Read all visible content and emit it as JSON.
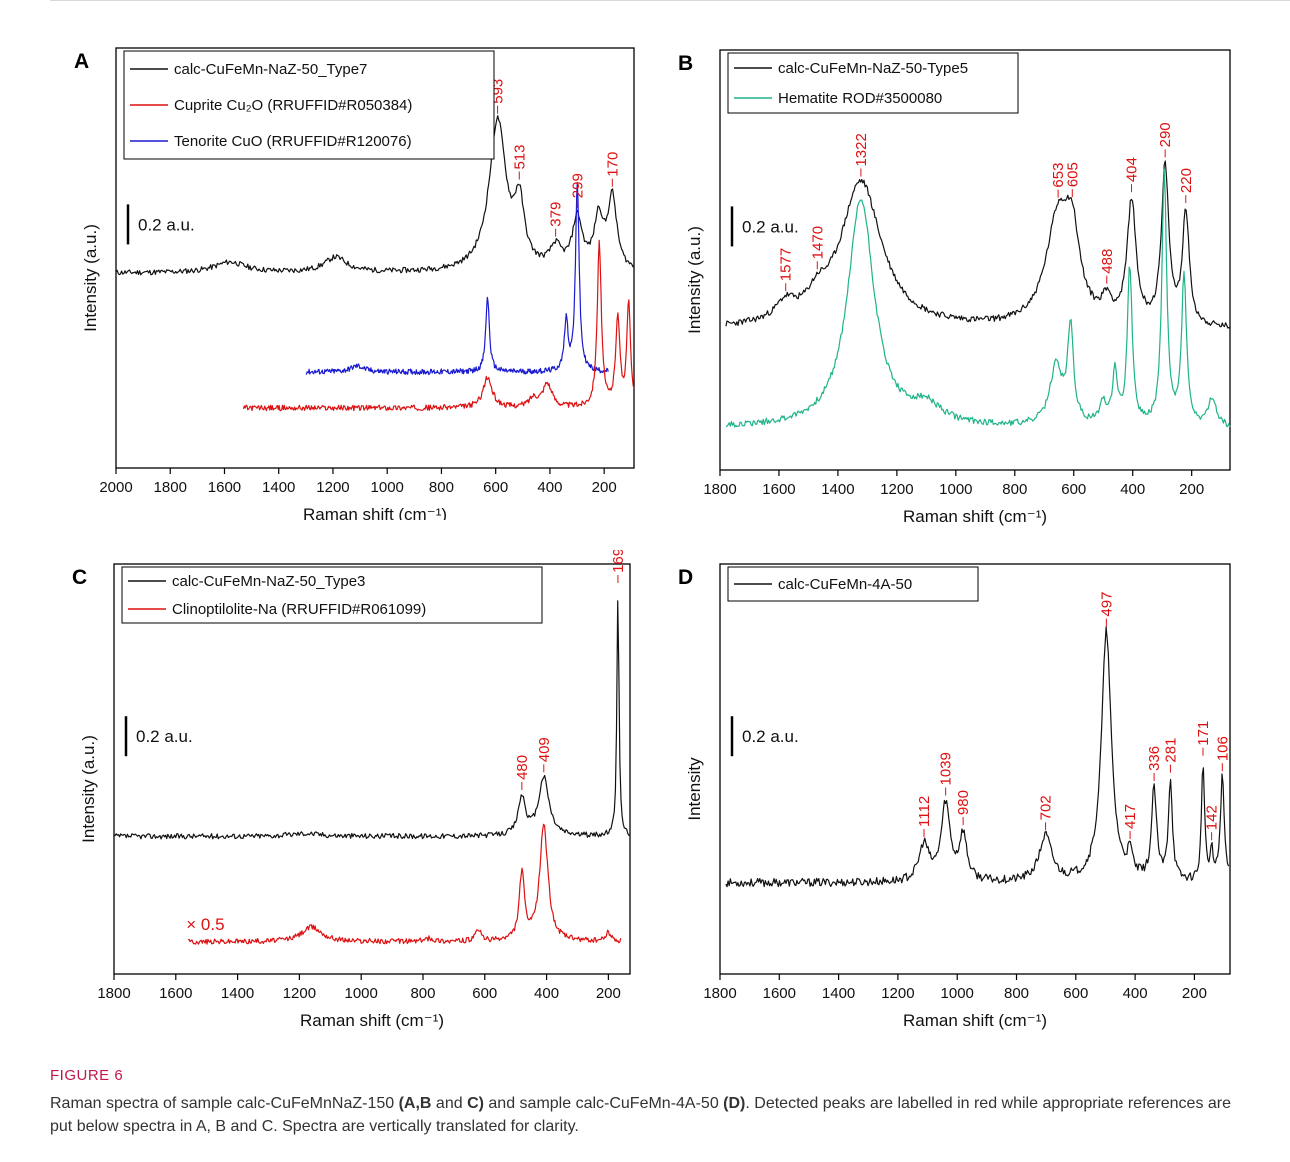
{
  "figure": {
    "label": "FIGURE 6",
    "caption_parts": [
      "Raman spectra of sample calc-CuFeMnNaZ-150 ",
      "(A,B",
      " and ",
      "C)",
      " and sample calc-CuFeMn-4A-50 ",
      "(D)",
      ". Detected peaks are labelled in red while appropriate references are put below spectra in A, B and C. Spectra are vertically translated for clarity."
    ]
  },
  "chart_data": [
    {
      "panel": "A",
      "type": "line",
      "xlabel": "Raman shift (cm⁻¹)",
      "ylabel": "Intensity (a.u.)",
      "xlim": [
        2000,
        90
      ],
      "xticks": [
        2000,
        1800,
        1600,
        1400,
        1200,
        1000,
        800,
        600,
        400,
        200
      ],
      "scale_bar": "0.2 a.u.",
      "legend": [
        {
          "name": "calc-CuFeMn-NaZ-50_Type7",
          "color": "#111111"
        },
        {
          "name": "Cuprite Cu₂O (RRUFFID#R050384)",
          "color": "#dd1111"
        },
        {
          "name": "Tenorite CuO (RRUFFID#R120076)",
          "color": "#1a1ad0"
        }
      ],
      "peak_labels": [
        "593",
        "513",
        "379",
        "299",
        "170"
      ],
      "peaks": [
        593,
        513,
        379,
        299,
        170
      ],
      "series": [
        {
          "name": "calc-CuFeMn-NaZ-50_Type7",
          "color": "#111111",
          "xrange": [
            2000,
            90
          ],
          "baseline": 0.05,
          "slope": 0.0,
          "peaks": [
            [
              593,
              0.5,
              38
            ],
            [
              513,
              0.2,
              22
            ],
            [
              379,
              0.07,
              25
            ],
            [
              299,
              0.17,
              22
            ],
            [
              220,
              0.17,
              20
            ],
            [
              170,
              0.24,
              20
            ],
            [
              1190,
              0.05,
              50
            ],
            [
              1580,
              0.035,
              70
            ]
          ]
        },
        {
          "name": "Tenorite CuO (RRUFFID#R120076)",
          "color": "#1a1ad0",
          "xrange": [
            1300,
            185
          ],
          "baseline": -0.28,
          "slope": 0.0,
          "peaks": [
            [
              630,
              0.25,
              8
            ],
            [
              340,
              0.17,
              8
            ],
            [
              299,
              0.63,
              8
            ],
            [
              1110,
              0.02,
              30
            ]
          ]
        },
        {
          "name": "Cuprite Cu₂O (RRUFFID#R050384)",
          "color": "#dd1111",
          "xrange": [
            1530,
            90
          ],
          "baseline": -0.4,
          "slope": 0.0,
          "peaks": [
            [
              630,
              0.1,
              20
            ],
            [
              410,
              0.08,
              20
            ],
            [
              460,
              0.03,
              20
            ],
            [
              218,
              0.55,
              9
            ],
            [
              150,
              0.3,
              9
            ],
            [
              110,
              0.35,
              8
            ]
          ]
        }
      ]
    },
    {
      "panel": "B",
      "type": "line",
      "xlabel": "Raman shift (cm⁻¹)",
      "ylabel": "Intensity (a.u.)",
      "xlim": [
        1800,
        70
      ],
      "xticks": [
        1800,
        1600,
        1400,
        1200,
        1000,
        800,
        600,
        400,
        200
      ],
      "scale_bar": "0.2 a.u.",
      "legend": [
        {
          "name": "calc-CuFeMn-NaZ-50-Type5",
          "color": "#111111"
        },
        {
          "name": "Hematite ROD#3500080",
          "color": "#1fb38a"
        }
      ],
      "peak_labels": [
        "1577",
        "1470",
        "1322",
        "653",
        "605",
        "488",
        "404",
        "290",
        "220"
      ],
      "peaks": [
        1577,
        1470,
        1322,
        653,
        605,
        488,
        404,
        290,
        220
      ],
      "series": [
        {
          "name": "calc-CuFeMn-NaZ-50-Type5",
          "color": "#111111",
          "xrange": [
            1780,
            70
          ],
          "baseline": 0.05,
          "slope": 0.0,
          "peaks": [
            [
              1322,
              0.42,
              85
            ],
            [
              1577,
              0.05,
              40
            ],
            [
              1470,
              0.05,
              40
            ],
            [
              653,
              0.3,
              50
            ],
            [
              605,
              0.2,
              30
            ],
            [
              488,
              0.06,
              20
            ],
            [
              404,
              0.35,
              18
            ],
            [
              290,
              0.45,
              15
            ],
            [
              220,
              0.32,
              14
            ]
          ]
        },
        {
          "name": "Hematite ROD#3500080",
          "color": "#1fb38a",
          "xrange": [
            1780,
            70
          ],
          "baseline": -0.23,
          "slope": 0.0,
          "peaks": [
            [
              1322,
              0.65,
              55
            ],
            [
              1100,
              0.05,
              60
            ],
            [
              660,
              0.17,
              25
            ],
            [
              611,
              0.27,
              12
            ],
            [
              500,
              0.06,
              15
            ],
            [
              460,
              0.15,
              10
            ],
            [
              410,
              0.45,
              10
            ],
            [
              293,
              0.72,
              10
            ],
            [
              226,
              0.43,
              10
            ],
            [
              130,
              0.08,
              15
            ]
          ]
        }
      ]
    },
    {
      "panel": "C",
      "type": "line",
      "xlabel": "Raman shift (cm⁻¹)",
      "ylabel": "Intensity (a.u.)",
      "xlim": [
        1800,
        130
      ],
      "xticks": [
        1800,
        1600,
        1400,
        1200,
        1000,
        800,
        600,
        400,
        200
      ],
      "scale_bar": "0.2 a.u.",
      "annotation": "× 0.5",
      "legend": [
        {
          "name": "calc-CuFeMn-NaZ-50_Type3",
          "color": "#111111"
        },
        {
          "name": "Clinoptilolite-Na (RRUFFID#R061099)",
          "color": "#dd1111"
        }
      ],
      "peak_labels": [
        "480",
        "409",
        "169"
      ],
      "peaks": [
        480,
        409,
        169
      ],
      "series": [
        {
          "name": "calc-CuFeMn-NaZ-50_Type3",
          "color": "#111111",
          "xrange": [
            1800,
            130
          ],
          "baseline": 0.02,
          "slope": 0.0,
          "peaks": [
            [
              480,
              0.13,
              14
            ],
            [
              409,
              0.2,
              20
            ],
            [
              169,
              0.85,
              4
            ],
            [
              1180,
              0.01,
              60
            ]
          ]
        },
        {
          "name": "Clinoptilolite-Na (RRUFFID#R061099)",
          "color": "#dd1111",
          "xrange": [
            1560,
            160
          ],
          "baseline": -0.34,
          "slope": 0.0,
          "peaks": [
            [
              480,
              0.23,
              10
            ],
            [
              409,
              0.4,
              16
            ],
            [
              1160,
              0.05,
              40
            ],
            [
              620,
              0.04,
              10
            ],
            [
              200,
              0.03,
              10
            ],
            [
              780,
              0.01,
              20
            ]
          ]
        }
      ]
    },
    {
      "panel": "D",
      "type": "line",
      "xlabel": "Raman shift (cm⁻¹)",
      "ylabel": "Intensity",
      "xlim": [
        1800,
        80
      ],
      "xticks": [
        1800,
        1600,
        1400,
        1200,
        1000,
        800,
        600,
        400,
        200
      ],
      "scale_bar": "0.2 a.u.",
      "legend": [
        {
          "name": "calc-CuFeMn-4A-50",
          "color": "#111111"
        }
      ],
      "peak_labels": [
        "1112",
        "1039",
        "980",
        "702",
        "497",
        "417",
        "336",
        "281",
        "171",
        "142",
        "106"
      ],
      "peaks": [
        1112,
        1039,
        980,
        702,
        497,
        417,
        336,
        281,
        171,
        142,
        106
      ],
      "series": [
        {
          "name": "calc-CuFeMn-4A-50",
          "color": "#111111",
          "xrange": [
            1780,
            85
          ],
          "baseline": 0.0,
          "slope": 0.0,
          "peaks": [
            [
              1112,
              0.08,
              20
            ],
            [
              1039,
              0.17,
              18
            ],
            [
              980,
              0.1,
              15
            ],
            [
              702,
              0.1,
              25
            ],
            [
              497,
              0.55,
              20
            ],
            [
              417,
              0.05,
              10
            ],
            [
              336,
              0.2,
              10
            ],
            [
              281,
              0.22,
              8
            ],
            [
              171,
              0.26,
              6
            ],
            [
              142,
              0.06,
              6
            ],
            [
              106,
              0.23,
              8
            ]
          ]
        }
      ]
    }
  ]
}
